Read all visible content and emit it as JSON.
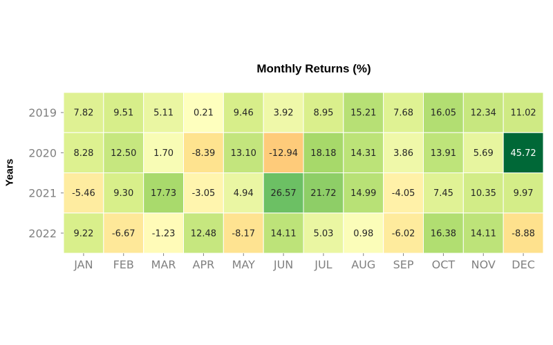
{
  "chart_data": {
    "type": "heatmap",
    "title": "Monthly Returns (%)",
    "xlabel": "",
    "ylabel": "Years",
    "x_categories": [
      "JAN",
      "FEB",
      "MAR",
      "APR",
      "MAY",
      "JUN",
      "JUL",
      "AUG",
      "SEP",
      "OCT",
      "NOV",
      "DEC"
    ],
    "y_categories": [
      "2019",
      "2020",
      "2021",
      "2022"
    ],
    "values": [
      [
        7.82,
        9.51,
        5.11,
        0.21,
        9.46,
        3.92,
        8.95,
        15.21,
        7.68,
        16.05,
        12.34,
        11.02
      ],
      [
        8.28,
        12.5,
        1.7,
        -8.39,
        13.1,
        -12.94,
        18.18,
        14.31,
        3.86,
        13.91,
        5.69,
        45.72
      ],
      [
        -5.46,
        9.3,
        17.73,
        -3.05,
        4.94,
        26.57,
        21.72,
        14.99,
        -4.05,
        7.45,
        10.35,
        9.97
      ],
      [
        9.22,
        -6.67,
        -1.23,
        12.48,
        -8.17,
        14.11,
        5.03,
        0.98,
        -6.02,
        16.38,
        14.11,
        -8.88
      ]
    ],
    "value_labels": [
      [
        "7.82",
        "9.51",
        "5.11",
        "0.21",
        "9.46",
        "3.92",
        "8.95",
        "15.21",
        "7.68",
        "16.05",
        "12.34",
        "11.02"
      ],
      [
        "8.28",
        "12.50",
        "1.70",
        "-8.39",
        "13.10",
        "-12.94",
        "18.18",
        "14.31",
        "3.86",
        "13.91",
        "5.69",
        "45.72"
      ],
      [
        "-5.46",
        "9.30",
        "17.73",
        "-3.05",
        "4.94",
        "26.57",
        "21.72",
        "14.99",
        "-4.05",
        "7.45",
        "10.35",
        "9.97"
      ],
      [
        "9.22",
        "-6.67",
        "-1.23",
        "12.48",
        "-8.17",
        "14.11",
        "5.03",
        "0.98",
        "-6.02",
        "16.38",
        "14.11",
        "-8.88"
      ]
    ],
    "colormap": "RdYlGn",
    "center": 0,
    "color_limits": [
      -45.72,
      45.72
    ],
    "colorbar": false,
    "grid": false,
    "colors": {
      "tick_label": "#808080",
      "cell_border": "#ffffff",
      "text_dark": "#262626",
      "text_light": "#ffffff"
    }
  }
}
